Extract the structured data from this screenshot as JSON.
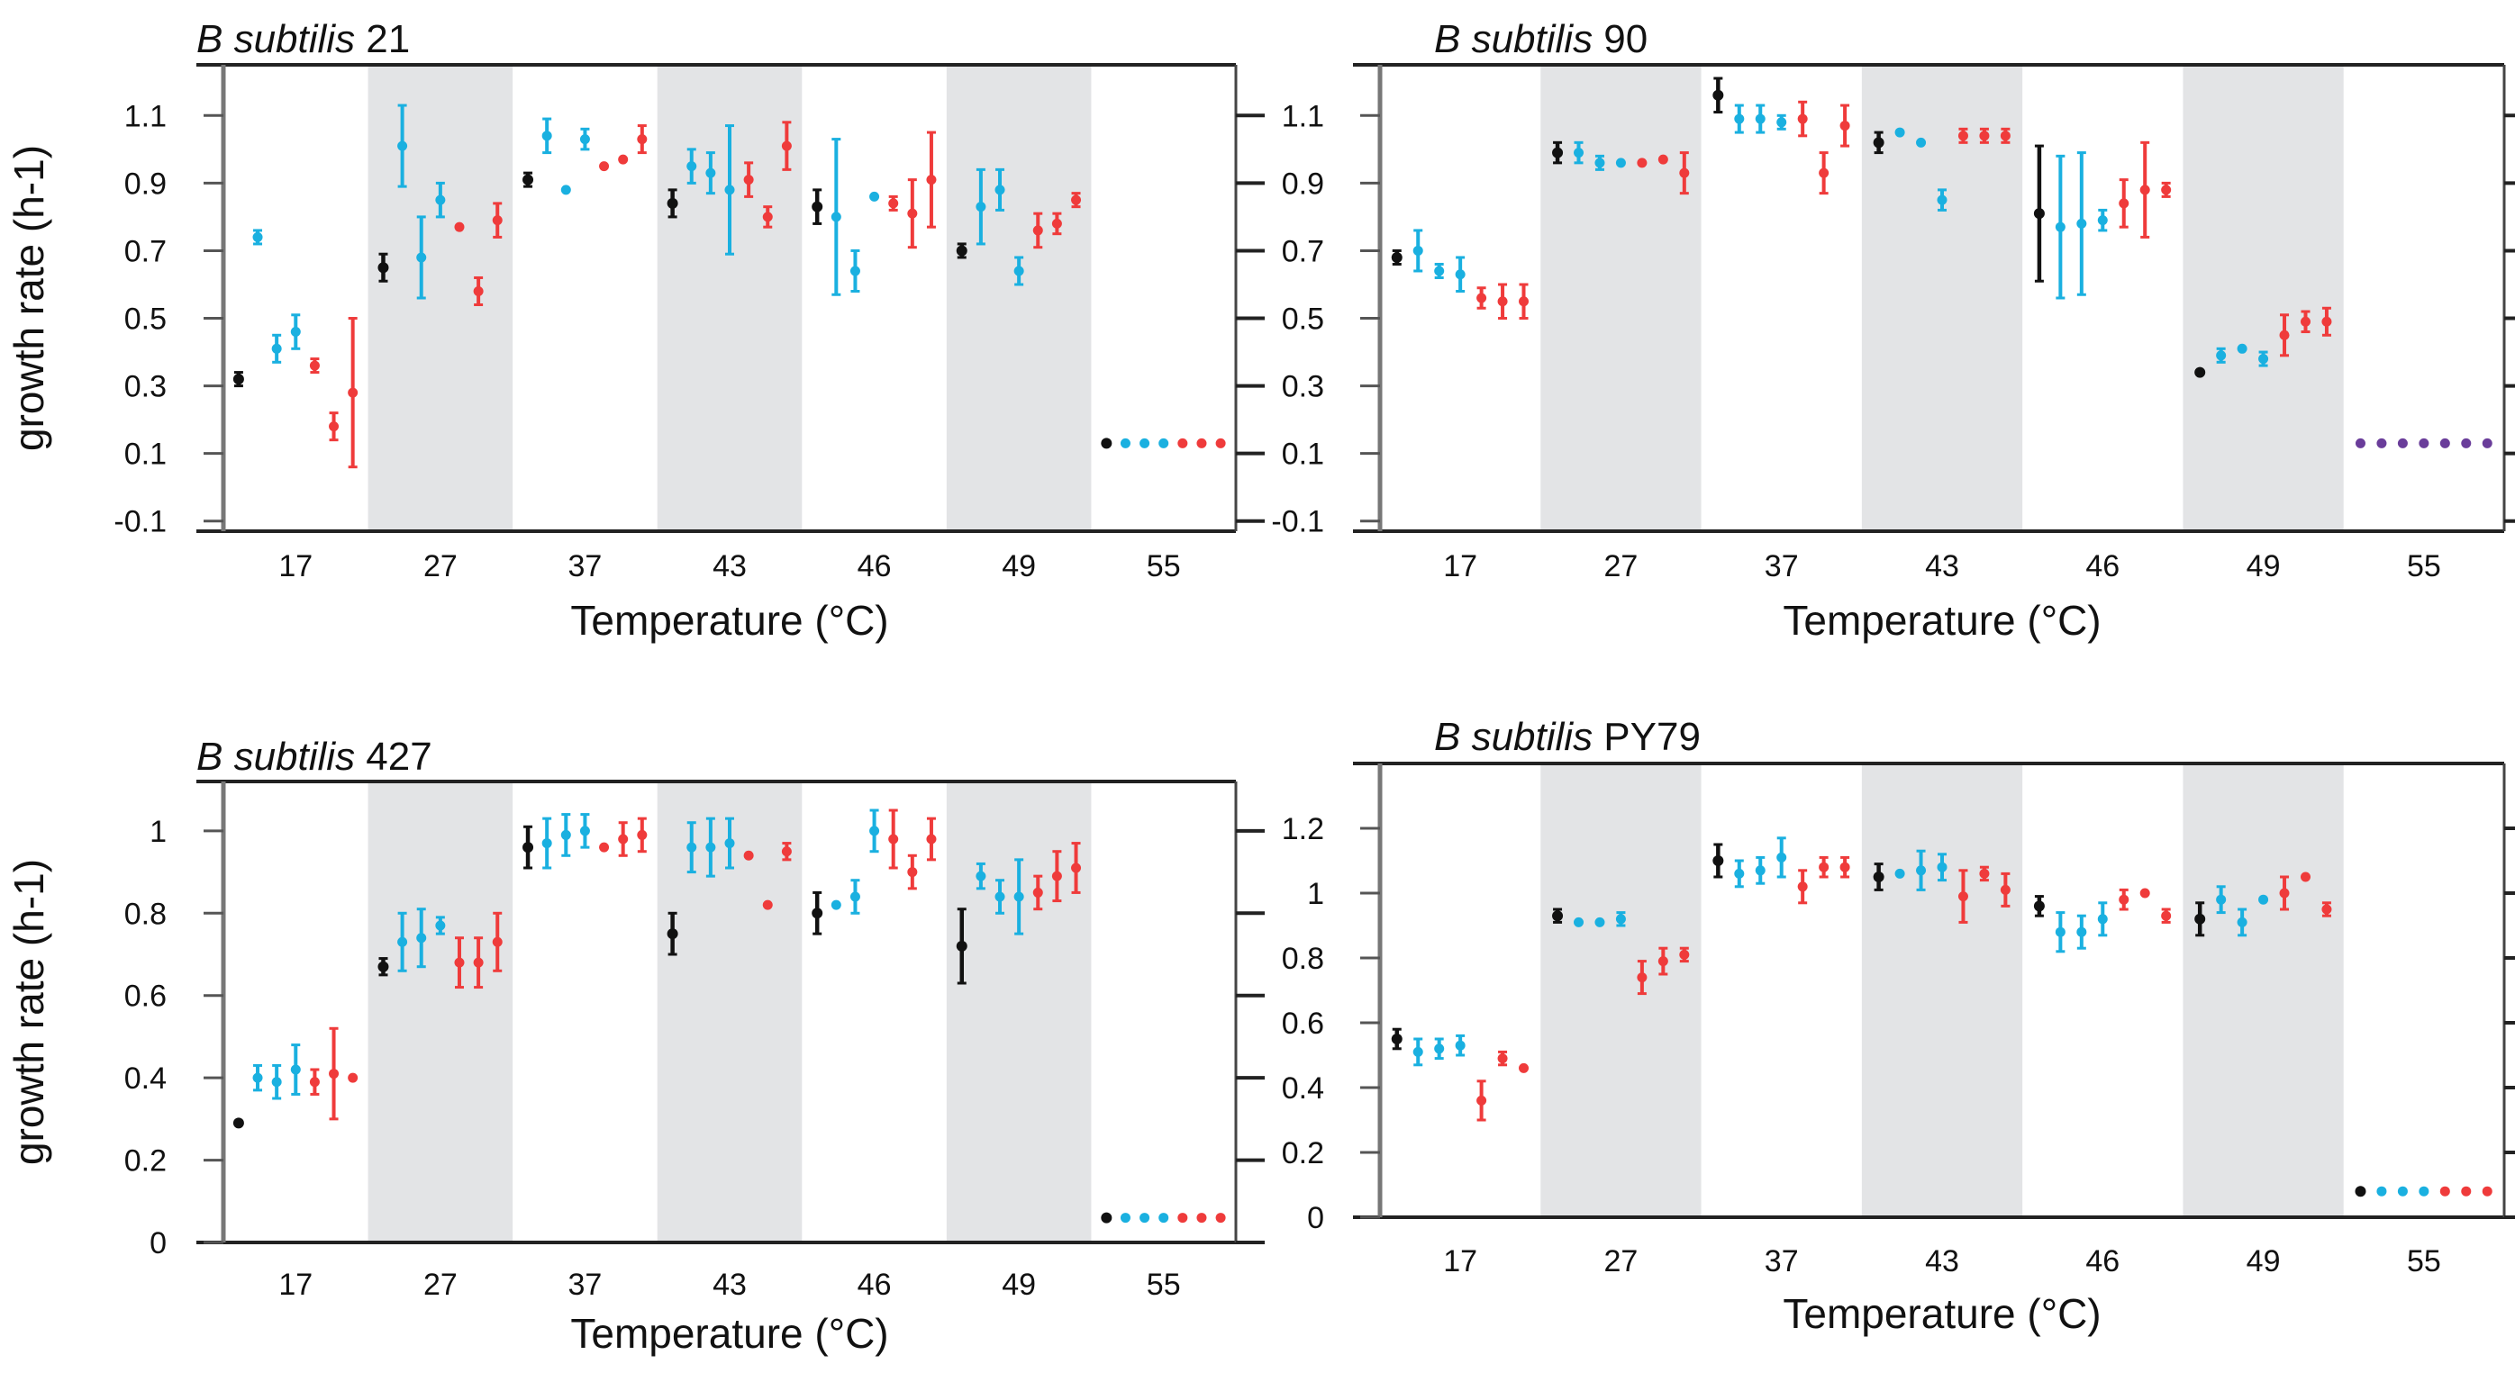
{
  "chart_data": [
    {
      "type": "scatter",
      "title_italic": "B subtilis",
      "title_rest": " 21",
      "xlabel": "Temperature (°C)",
      "ylabel": "growth rate (h-1)",
      "ytick_labels": [
        "-0.1",
        "0.1",
        "0.3",
        "0.5",
        "0.7",
        "0.9",
        "1.1"
      ],
      "ytick_values": [
        -0.1,
        0.1,
        0.3,
        0.5,
        0.7,
        0.9,
        1.1
      ],
      "ylim": [
        -0.13,
        1.25
      ],
      "xtick_labels": [
        "17",
        "27",
        "37",
        "43",
        "46",
        "49",
        "55"
      ],
      "shaded_groups": [
        1,
        3,
        5
      ],
      "series_colors": {
        "ctrl": "#111111",
        "blue": "#1ab0e0",
        "red": "#ef3b3b",
        "purple": "#6a3d9a"
      },
      "groups": [
        [
          [
            "ctrl",
            0.32,
            0.02
          ],
          [
            "blue",
            0.74,
            0.02
          ],
          [
            "blue",
            0.41,
            0.04
          ],
          [
            "blue",
            0.46,
            0.05
          ],
          [
            "red",
            0.36,
            0.02
          ],
          [
            "red",
            0.18,
            0.04
          ],
          [
            "red",
            0.28,
            0.22
          ]
        ],
        [
          [
            "ctrl",
            0.65,
            0.04
          ],
          [
            "blue",
            1.01,
            0.12
          ],
          [
            "blue",
            0.68,
            0.12
          ],
          [
            "blue",
            0.85,
            0.05
          ],
          [
            "red",
            0.77,
            0.01
          ],
          [
            "red",
            0.58,
            0.04
          ],
          [
            "red",
            0.79,
            0.05
          ]
        ],
        [
          [
            "ctrl",
            0.91,
            0.02
          ],
          [
            "blue",
            1.04,
            0.05
          ],
          [
            "blue",
            0.88,
            0.01
          ],
          [
            "blue",
            1.03,
            0.03
          ],
          [
            "red",
            0.95,
            0.01
          ],
          [
            "red",
            0.97,
            0.01
          ],
          [
            "red",
            1.03,
            0.04
          ]
        ],
        [
          [
            "ctrl",
            0.84,
            0.04
          ],
          [
            "blue",
            0.95,
            0.05
          ],
          [
            "blue",
            0.93,
            0.06
          ],
          [
            "blue",
            0.88,
            0.19
          ],
          [
            "red",
            0.91,
            0.05
          ],
          [
            "red",
            0.8,
            0.03
          ],
          [
            "red",
            1.01,
            0.07
          ]
        ],
        [
          [
            "ctrl",
            0.83,
            0.05
          ],
          [
            "blue",
            0.8,
            0.23
          ],
          [
            "blue",
            0.64,
            0.06
          ],
          [
            "blue",
            0.86,
            0.01
          ],
          [
            "red",
            0.84,
            0.02
          ],
          [
            "red",
            0.81,
            0.1
          ],
          [
            "red",
            0.91,
            0.14
          ]
        ],
        [
          [
            "ctrl",
            0.7,
            0.02
          ],
          [
            "blue",
            0.83,
            0.11
          ],
          [
            "blue",
            0.88,
            0.06
          ],
          [
            "blue",
            0.64,
            0.04
          ],
          [
            "red",
            0.76,
            0.05
          ],
          [
            "red",
            0.78,
            0.03
          ],
          [
            "red",
            0.85,
            0.02
          ]
        ],
        [
          [
            "ctrl",
            0.13,
            0.005
          ],
          [
            "blue",
            0.13,
            0.005
          ],
          [
            "blue",
            0.13,
            0.005
          ],
          [
            "blue",
            0.13,
            0.005
          ],
          [
            "red",
            0.13,
            0.005
          ],
          [
            "red",
            0.13,
            0.005
          ],
          [
            "red",
            0.13,
            0.005
          ]
        ]
      ]
    },
    {
      "type": "scatter",
      "title_italic": "B subtilis",
      "title_rest": " 90",
      "xlabel": "Temperature (°C)",
      "ylabel": "",
      "ytick_labels": [
        "-0.1",
        "0.1",
        "0.3",
        "0.5",
        "0.7",
        "0.9",
        "1.1"
      ],
      "ytick_values": [
        -0.1,
        0.1,
        0.3,
        0.5,
        0.7,
        0.9,
        1.1
      ],
      "ylim": [
        -0.13,
        1.25
      ],
      "xtick_labels": [
        "17",
        "27",
        "37",
        "43",
        "46",
        "49",
        "55"
      ],
      "shaded_groups": [
        1,
        3,
        5
      ],
      "series_colors": {
        "ctrl": "#111111",
        "blue": "#1ab0e0",
        "red": "#ef3b3b",
        "purple": "#6a3d9a"
      },
      "groups": [
        [
          [
            "ctrl",
            0.68,
            0.02
          ],
          [
            "blue",
            0.7,
            0.06
          ],
          [
            "blue",
            0.64,
            0.02
          ],
          [
            "blue",
            0.63,
            0.05
          ],
          [
            "red",
            0.56,
            0.03
          ],
          [
            "red",
            0.55,
            0.05
          ],
          [
            "red",
            0.55,
            0.05
          ]
        ],
        [
          [
            "ctrl",
            0.99,
            0.03
          ],
          [
            "blue",
            0.99,
            0.03
          ],
          [
            "blue",
            0.96,
            0.02
          ],
          [
            "blue",
            0.96,
            0.01
          ],
          [
            "red",
            0.96,
            0.01
          ],
          [
            "red",
            0.97,
            0.01
          ],
          [
            "red",
            0.93,
            0.06
          ]
        ],
        [
          [
            "ctrl",
            1.16,
            0.05
          ],
          [
            "blue",
            1.09,
            0.04
          ],
          [
            "blue",
            1.09,
            0.04
          ],
          [
            "blue",
            1.08,
            0.02
          ],
          [
            "red",
            1.09,
            0.05
          ],
          [
            "red",
            0.93,
            0.06
          ],
          [
            "red",
            1.07,
            0.06
          ]
        ],
        [
          [
            "ctrl",
            1.02,
            0.03
          ],
          [
            "blue",
            1.05,
            0.01
          ],
          [
            "blue",
            1.02,
            0.01
          ],
          [
            "blue",
            0.85,
            0.03
          ],
          [
            "red",
            1.04,
            0.02
          ],
          [
            "red",
            1.04,
            0.02
          ],
          [
            "red",
            1.04,
            0.02
          ]
        ],
        [
          [
            "ctrl",
            0.81,
            0.2
          ],
          [
            "blue",
            0.77,
            0.21
          ],
          [
            "blue",
            0.78,
            0.21
          ],
          [
            "blue",
            0.79,
            0.03
          ],
          [
            "red",
            0.84,
            0.07
          ],
          [
            "red",
            0.88,
            0.14
          ],
          [
            "red",
            0.88,
            0.02
          ]
        ],
        [
          [
            "ctrl",
            0.34,
            0.01
          ],
          [
            "blue",
            0.39,
            0.02
          ],
          [
            "blue",
            0.41,
            0.01
          ],
          [
            "blue",
            0.38,
            0.02
          ],
          [
            "red",
            0.45,
            0.06
          ],
          [
            "red",
            0.49,
            0.03
          ],
          [
            "red",
            0.49,
            0.04
          ]
        ],
        [
          [
            "purple",
            0.13,
            0.005
          ],
          [
            "purple",
            0.13,
            0.005
          ],
          [
            "purple",
            0.13,
            0.005
          ],
          [
            "purple",
            0.13,
            0.005
          ],
          [
            "purple",
            0.13,
            0.005
          ],
          [
            "purple",
            0.13,
            0.005
          ],
          [
            "purple",
            0.13,
            0.005
          ]
        ]
      ]
    },
    {
      "type": "scatter",
      "title_italic": "B subtilis",
      "title_rest": " 427",
      "xlabel": "Temperature (°C)",
      "ylabel": "growth rate (h-1)",
      "ytick_labels": [
        "0",
        "0.2",
        "0.4",
        "0.6",
        "0.8",
        "1"
      ],
      "ytick_values": [
        0,
        0.2,
        0.4,
        0.6,
        0.8,
        1.0
      ],
      "ylim": [
        0.0,
        1.12
      ],
      "xtick_labels": [
        "17",
        "27",
        "37",
        "43",
        "46",
        "49",
        "55"
      ],
      "shaded_groups": [
        1,
        3,
        5
      ],
      "series_colors": {
        "ctrl": "#111111",
        "blue": "#1ab0e0",
        "red": "#ef3b3b",
        "purple": "#6a3d9a"
      },
      "groups": [
        [
          [
            "ctrl",
            0.29,
            0.01
          ],
          [
            "blue",
            0.4,
            0.03
          ],
          [
            "blue",
            0.39,
            0.04
          ],
          [
            "blue",
            0.42,
            0.06
          ],
          [
            "red",
            0.39,
            0.03
          ],
          [
            "red",
            0.41,
            0.11
          ],
          [
            "red",
            0.4,
            0.01
          ]
        ],
        [
          [
            "ctrl",
            0.67,
            0.02
          ],
          [
            "blue",
            0.73,
            0.07
          ],
          [
            "blue",
            0.74,
            0.07
          ],
          [
            "blue",
            0.77,
            0.02
          ],
          [
            "red",
            0.68,
            0.06
          ],
          [
            "red",
            0.68,
            0.06
          ],
          [
            "red",
            0.73,
            0.07
          ]
        ],
        [
          [
            "ctrl",
            0.96,
            0.05
          ],
          [
            "blue",
            0.97,
            0.06
          ],
          [
            "blue",
            0.99,
            0.05
          ],
          [
            "blue",
            1.0,
            0.04
          ],
          [
            "red",
            0.96,
            0.01
          ],
          [
            "red",
            0.98,
            0.04
          ],
          [
            "red",
            0.99,
            0.04
          ]
        ],
        [
          [
            "ctrl",
            0.75,
            0.05
          ],
          [
            "blue",
            0.96,
            0.06
          ],
          [
            "blue",
            0.96,
            0.07
          ],
          [
            "blue",
            0.97,
            0.06
          ],
          [
            "red",
            0.94,
            0.01
          ],
          [
            "red",
            0.82,
            0.01
          ],
          [
            "red",
            0.95,
            0.02
          ]
        ],
        [
          [
            "ctrl",
            0.8,
            0.05
          ],
          [
            "blue",
            0.82,
            0.01
          ],
          [
            "blue",
            0.84,
            0.04
          ],
          [
            "blue",
            1.0,
            0.05
          ],
          [
            "red",
            0.98,
            0.07
          ],
          [
            "red",
            0.9,
            0.04
          ],
          [
            "red",
            0.98,
            0.05
          ]
        ],
        [
          [
            "ctrl",
            0.72,
            0.09
          ],
          [
            "blue",
            0.89,
            0.03
          ],
          [
            "blue",
            0.84,
            0.04
          ],
          [
            "blue",
            0.84,
            0.09
          ],
          [
            "red",
            0.85,
            0.04
          ],
          [
            "red",
            0.89,
            0.06
          ],
          [
            "red",
            0.91,
            0.06
          ]
        ],
        [
          [
            "ctrl",
            0.06,
            0.005
          ],
          [
            "blue",
            0.06,
            0.005
          ],
          [
            "blue",
            0.06,
            0.005
          ],
          [
            "blue",
            0.06,
            0.005
          ],
          [
            "red",
            0.06,
            0.005
          ],
          [
            "red",
            0.06,
            0.005
          ],
          [
            "red",
            0.06,
            0.005
          ]
        ]
      ]
    },
    {
      "type": "scatter",
      "title_italic": "B subtilis",
      "title_rest": " PY79",
      "xlabel": "Temperature (°C)",
      "ylabel": "",
      "ytick_labels": [
        "0",
        "0.2",
        "0.4",
        "0.6",
        "0.8",
        "1",
        "1.2"
      ],
      "ytick_values": [
        0,
        0.2,
        0.4,
        0.6,
        0.8,
        1.0,
        1.2
      ],
      "ylim": [
        0.0,
        1.4
      ],
      "xtick_labels": [
        "17",
        "27",
        "37",
        "43",
        "46",
        "49",
        "55"
      ],
      "shaded_groups": [
        1,
        3,
        5
      ],
      "series_colors": {
        "ctrl": "#111111",
        "blue": "#1ab0e0",
        "red": "#ef3b3b",
        "purple": "#6a3d9a"
      },
      "groups": [
        [
          [
            "ctrl",
            0.55,
            0.03
          ],
          [
            "blue",
            0.51,
            0.04
          ],
          [
            "blue",
            0.52,
            0.03
          ],
          [
            "blue",
            0.53,
            0.03
          ],
          [
            "red",
            0.36,
            0.06
          ],
          [
            "red",
            0.49,
            0.02
          ],
          [
            "red",
            0.46,
            0.01
          ]
        ],
        [
          [
            "ctrl",
            0.93,
            0.02
          ],
          [
            "blue",
            0.91,
            0.01
          ],
          [
            "blue",
            0.91,
            0.01
          ],
          [
            "blue",
            0.92,
            0.02
          ],
          [
            "red",
            0.74,
            0.05
          ],
          [
            "red",
            0.79,
            0.04
          ],
          [
            "red",
            0.81,
            0.02
          ]
        ],
        [
          [
            "ctrl",
            1.1,
            0.05
          ],
          [
            "blue",
            1.06,
            0.04
          ],
          [
            "blue",
            1.07,
            0.04
          ],
          [
            "blue",
            1.11,
            0.06
          ],
          [
            "red",
            1.02,
            0.05
          ],
          [
            "red",
            1.08,
            0.03
          ],
          [
            "red",
            1.08,
            0.03
          ]
        ],
        [
          [
            "ctrl",
            1.05,
            0.04
          ],
          [
            "blue",
            1.06,
            0.01
          ],
          [
            "blue",
            1.07,
            0.06
          ],
          [
            "blue",
            1.08,
            0.04
          ],
          [
            "red",
            0.99,
            0.08
          ],
          [
            "red",
            1.06,
            0.02
          ],
          [
            "red",
            1.01,
            0.05
          ]
        ],
        [
          [
            "ctrl",
            0.96,
            0.03
          ],
          [
            "blue",
            0.88,
            0.06
          ],
          [
            "blue",
            0.88,
            0.05
          ],
          [
            "blue",
            0.92,
            0.05
          ],
          [
            "red",
            0.98,
            0.03
          ],
          [
            "red",
            1.0,
            0.01
          ],
          [
            "red",
            0.93,
            0.02
          ]
        ],
        [
          [
            "ctrl",
            0.92,
            0.05
          ],
          [
            "blue",
            0.98,
            0.04
          ],
          [
            "blue",
            0.91,
            0.04
          ],
          [
            "blue",
            0.98,
            0.01
          ],
          [
            "red",
            1.0,
            0.05
          ],
          [
            "red",
            1.05,
            0.01
          ],
          [
            "red",
            0.95,
            0.02
          ]
        ],
        [
          [
            "ctrl",
            0.08,
            0.005
          ],
          [
            "blue",
            0.08,
            0.005
          ],
          [
            "blue",
            0.08,
            0.005
          ],
          [
            "blue",
            0.08,
            0.005
          ],
          [
            "red",
            0.08,
            0.005
          ],
          [
            "red",
            0.08,
            0.005
          ],
          [
            "red",
            0.08,
            0.005
          ]
        ]
      ]
    }
  ]
}
